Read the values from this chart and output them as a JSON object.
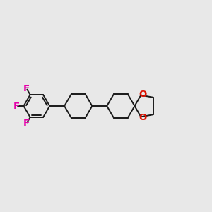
{
  "background_color": "#e8e8e8",
  "bond_color": "#1a1a1a",
  "F_color": "#e600aa",
  "O_color": "#dd1100",
  "bond_width": 1.4,
  "font_size_F": 9.5,
  "font_size_O": 9.5,
  "fig_width": 3.0,
  "fig_height": 3.0,
  "dpi": 100,
  "xlim": [
    0,
    12
  ],
  "ylim": [
    0,
    10
  ]
}
